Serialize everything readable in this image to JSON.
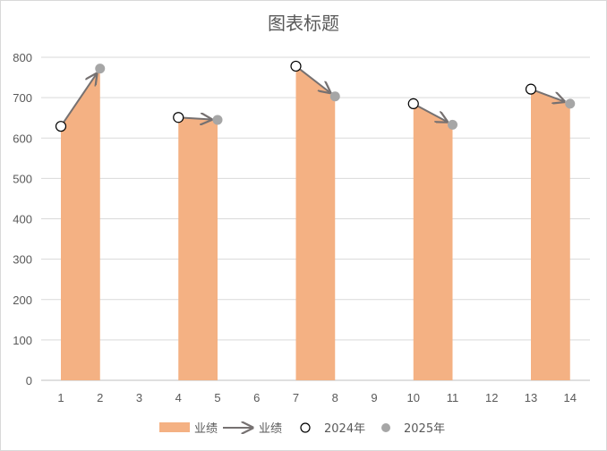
{
  "chart_data": {
    "type": "area",
    "title": "图表标题",
    "x": [
      1,
      2,
      3,
      4,
      5,
      6,
      7,
      8,
      9,
      10,
      11,
      12,
      13,
      14
    ],
    "ylim": [
      0,
      800
    ],
    "yticks": [
      0,
      100,
      200,
      300,
      400,
      500,
      600,
      700,
      800
    ],
    "grid": true,
    "legend_position": "bottom",
    "series": [
      {
        "name": "业绩",
        "kind": "area",
        "color": "#F4B183",
        "values": [
          629,
          772,
          null,
          651,
          645,
          null,
          778,
          703,
          null,
          685,
          633,
          null,
          721,
          685
        ]
      },
      {
        "name": "业绩",
        "kind": "arrow",
        "color": "#767171",
        "pairs": [
          [
            1,
            2
          ],
          [
            4,
            5
          ],
          [
            7,
            8
          ],
          [
            10,
            11
          ],
          [
            13,
            14
          ]
        ]
      },
      {
        "name": "2024年",
        "kind": "marker-open",
        "x": [
          1,
          4,
          7,
          10,
          13
        ],
        "values": [
          629,
          651,
          778,
          685,
          721
        ]
      },
      {
        "name": "2025年",
        "kind": "marker-filled",
        "color": "#A6A6A6",
        "x": [
          2,
          5,
          8,
          11,
          14
        ],
        "values": [
          772,
          645,
          703,
          633,
          685
        ]
      }
    ]
  }
}
